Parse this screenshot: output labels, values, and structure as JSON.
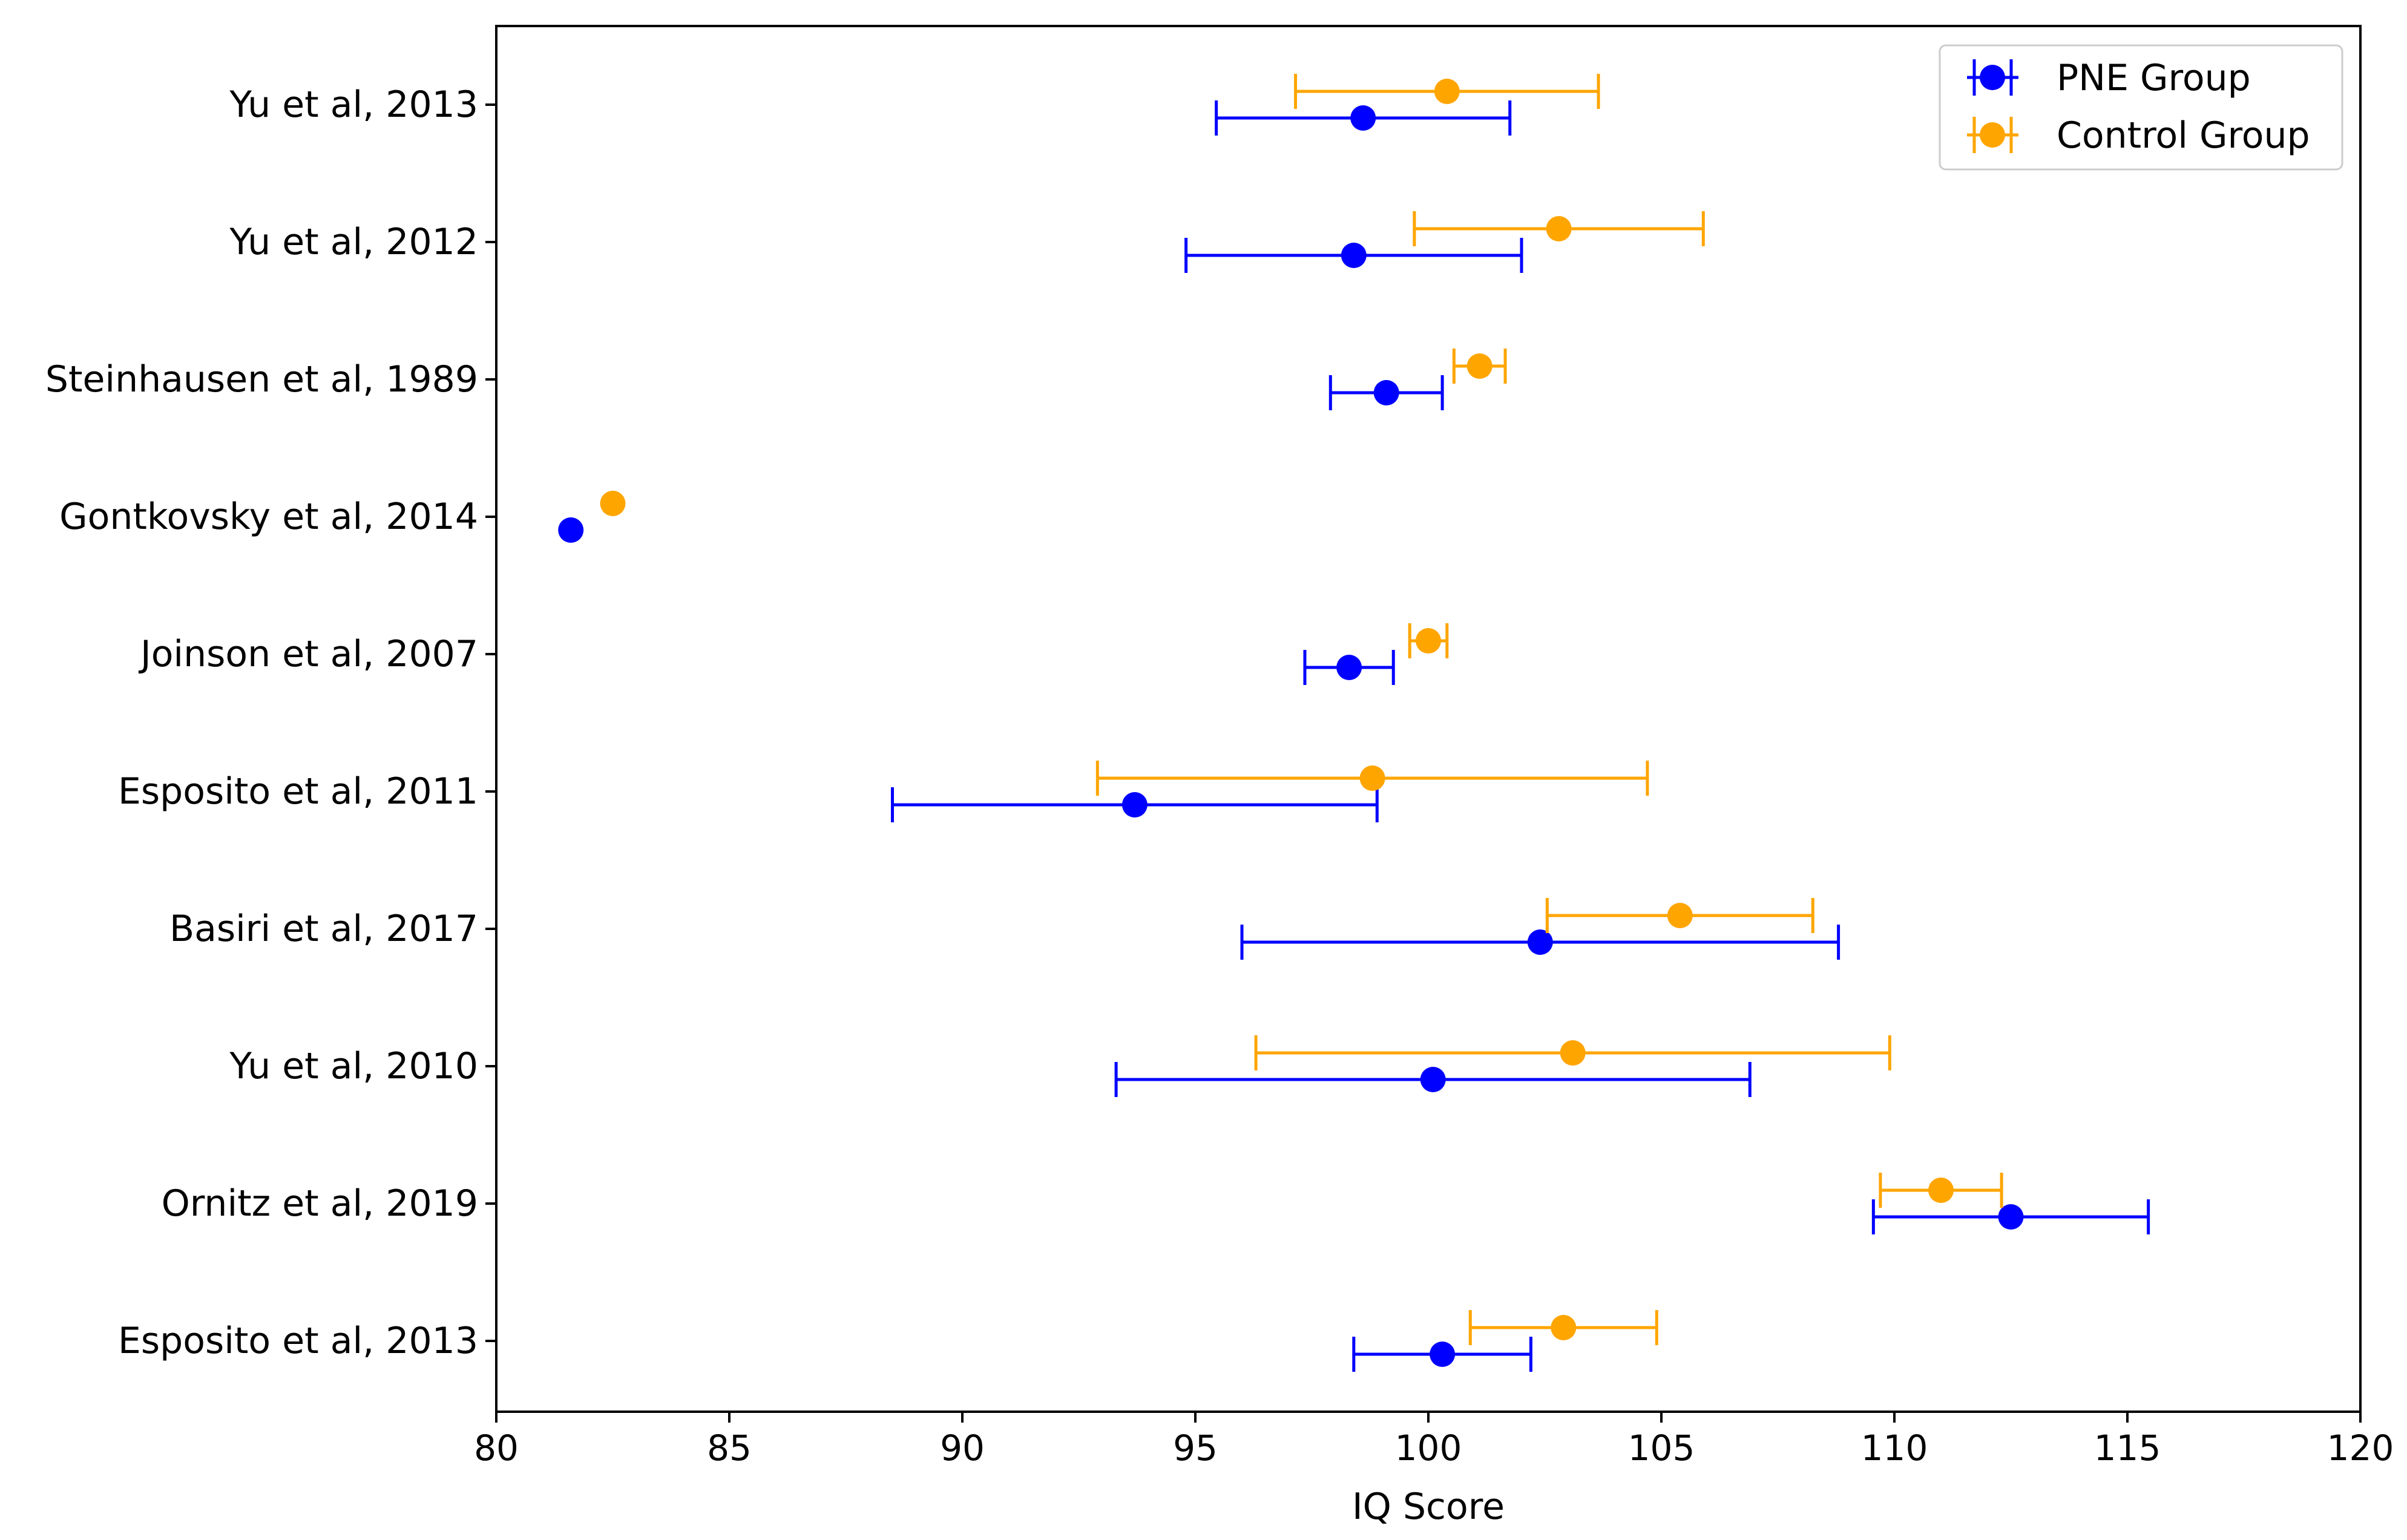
{
  "chart_data": {
    "type": "errorbar",
    "title": "",
    "xlabel": "IQ Score",
    "ylabel": "",
    "xlim": [
      80,
      120
    ],
    "xticks": [
      80,
      85,
      90,
      95,
      100,
      105,
      110,
      115,
      120
    ],
    "categories": [
      "Yu et al, 2013",
      "Yu et al, 2012",
      "Steinhausen et al, 1989",
      "Gontkovsky et al, 2014",
      "Joinson et al, 2007",
      "Esposito et al, 2011",
      "Basiri et al, 2017 ",
      "Yu et al, 2010",
      "Ornitz et al, 2019",
      "Esposito et al, 2013"
    ],
    "series": [
      {
        "name": "PNE Group",
        "color": "#0000ff",
        "values": [
          98.6,
          98.4,
          99.1,
          81.6,
          98.3,
          93.7,
          102.4,
          100.1,
          112.5,
          100.3
        ],
        "errors": [
          3.15,
          3.6,
          1.2,
          0,
          0.95,
          5.2,
          6.4,
          6.8,
          2.95,
          1.9
        ]
      },
      {
        "name": "Control Group",
        "color": "#ffa500",
        "values": [
          100.4,
          102.8,
          101.1,
          82.5,
          100.0,
          98.8,
          105.4,
          103.1,
          111.0,
          102.9
        ],
        "errors": [
          3.25,
          3.1,
          0.55,
          0,
          0.4,
          5.9,
          2.85,
          6.8,
          1.3,
          2.0
        ]
      }
    ],
    "grid": false,
    "legend_position": "top-right"
  }
}
